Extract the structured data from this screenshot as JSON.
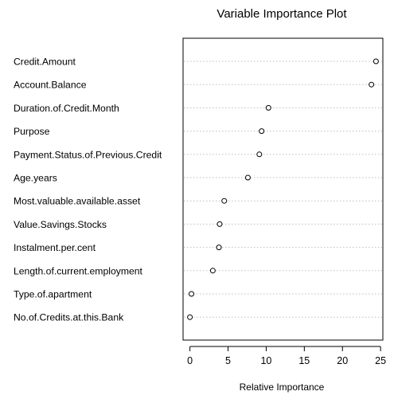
{
  "chart_data": {
    "type": "scatter",
    "subtype": "dotchart",
    "title": "Variable Importance Plot",
    "xlabel": "Relative Importance",
    "ylabel": "",
    "xlim": [
      -0.9,
      25.3
    ],
    "xticks": [
      0,
      5,
      10,
      15,
      20,
      25
    ],
    "grid": "dotted horizontal guide lines",
    "categories": [
      "Credit.Amount",
      "Account.Balance",
      "Duration.of.Credit.Month",
      "Purpose",
      "Payment.Status.of.Previous.Credit",
      "Age.years",
      "Most.valuable.available.asset",
      "Value.Savings.Stocks",
      "Instalment.per.cent",
      "Length.of.current.employment",
      "Type.of.apartment",
      "No.of.Credits.at.this.Bank"
    ],
    "values": [
      24.4,
      23.8,
      10.3,
      9.4,
      9.1,
      7.6,
      4.5,
      3.9,
      3.8,
      3.0,
      0.2,
      0.0
    ]
  }
}
